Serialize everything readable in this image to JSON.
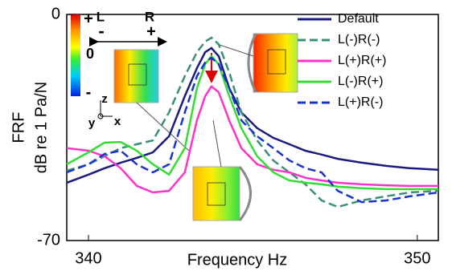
{
  "chart_data": {
    "type": "line",
    "ylabel": [
      "FRF",
      "dB re 1 Pa/N"
    ],
    "xlabel": "Frequency Hz",
    "x": [
      339.34,
      340.0,
      340.49,
      340.98,
      341.47,
      341.96,
      342.45,
      342.93,
      343.3,
      343.55,
      343.74,
      343.96,
      344.28,
      344.65,
      345.13,
      345.62,
      346.11,
      346.6,
      347.09,
      347.58,
      348.31,
      349.05,
      349.78,
      350.64
    ],
    "xlim": [
      339.34,
      350.64
    ],
    "xticks": [
      340,
      350
    ],
    "ylim": [
      -70,
      0
    ],
    "yticks": [
      0,
      -70
    ],
    "legend": "upper right",
    "annotations": [
      "+",
      "0",
      "-",
      "L",
      "R",
      "-",
      "+",
      "z",
      "y",
      "x"
    ],
    "series": [
      {
        "name": "Default",
        "color": "#1a1a80",
        "linestyle": "solid",
        "values": [
          -52.1,
          -49.6,
          -47.6,
          -45.9,
          -44.4,
          -42.7,
          -37.7,
          -25.3,
          -16.6,
          -11.7,
          -10.4,
          -12.9,
          -22.8,
          -30.3,
          -35.2,
          -38.2,
          -40.2,
          -42.2,
          -43.4,
          -44.7,
          -45.9,
          -46.9,
          -47.6,
          -48.1
        ]
      },
      {
        "name": "L(-)R(-)",
        "color": "#3a8f78",
        "linestyle": "dashed",
        "values": [
          -48.4,
          -46.4,
          -43.9,
          -41.4,
          -40.2,
          -39.0,
          -30.3,
          -19.1,
          -11.7,
          -8.4,
          -7.2,
          -9.2,
          -17.9,
          -30.3,
          -39.0,
          -45.2,
          -48.9,
          -52.6,
          -57.6,
          -59.6,
          -57.6,
          -56.3,
          -55.1,
          -54.6
        ]
      },
      {
        "name": "L(+)R(+)",
        "color": "#ff33cc",
        "linestyle": "solid",
        "values": [
          -41.4,
          -42.2,
          -43.9,
          -47.6,
          -53.1,
          -55.1,
          -54.6,
          -48.9,
          -32.8,
          -25.3,
          -22.3,
          -24.1,
          -32.8,
          -41.4,
          -46.4,
          -48.1,
          -48.9,
          -50.6,
          -51.4,
          -52.1,
          -52.6,
          -52.9,
          -53.1,
          -53.1
        ]
      },
      {
        "name": "L(-)R(+)",
        "color": "#33dd33",
        "linestyle": "solid",
        "values": [
          -46.4,
          -42.7,
          -39.7,
          -39.5,
          -42.2,
          -46.4,
          -49.6,
          -41.4,
          -22.8,
          -15.4,
          -12.9,
          -15.4,
          -25.3,
          -35.2,
          -43.9,
          -48.9,
          -51.4,
          -52.1,
          -52.6,
          -53.3,
          -53.8,
          -54.1,
          -54.1,
          -54.1
        ]
      },
      {
        "name": "L(+)R(-)",
        "color": "#1a33cc",
        "linestyle": "dashed",
        "values": [
          -48.9,
          -46.4,
          -43.2,
          -42.2,
          -46.4,
          -48.9,
          -46.4,
          -30.3,
          -19.1,
          -14.9,
          -13.4,
          -15.4,
          -22.8,
          -32.8,
          -37.7,
          -41.4,
          -45.2,
          -47.6,
          -48.9,
          -54.6,
          -58.1,
          -57.6,
          -56.3,
          -55.1
        ]
      }
    ]
  }
}
